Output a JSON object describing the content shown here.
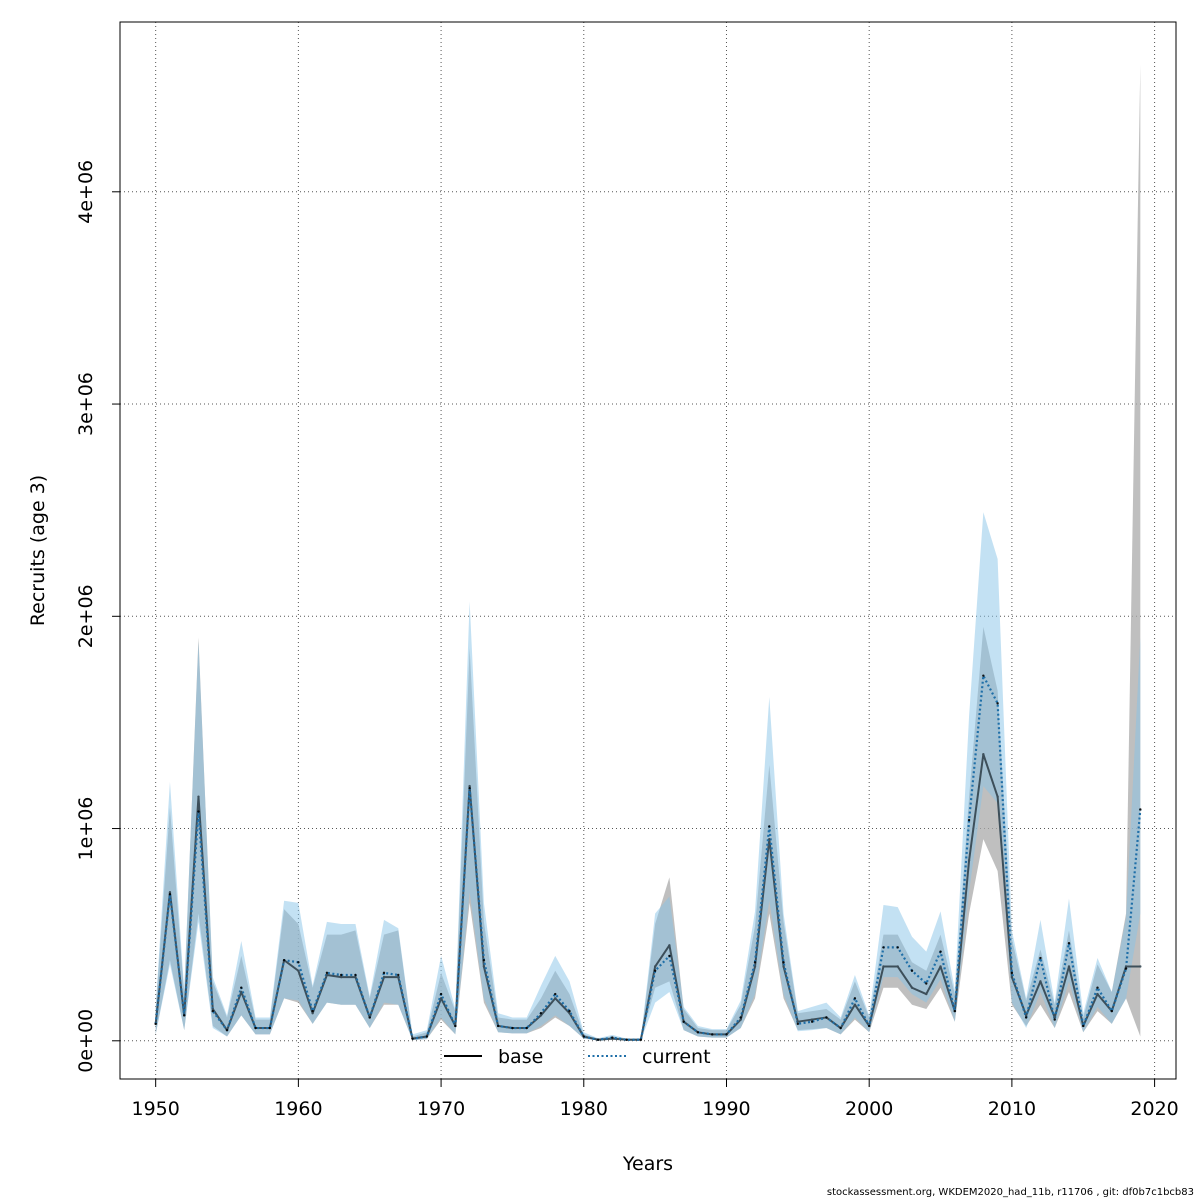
{
  "chart_data": {
    "type": "line",
    "title": "",
    "xlabel": "Years",
    "ylabel": "Recruits (age 3)",
    "xlim": [
      1947.5,
      2021.5
    ],
    "ylim": [
      -180000,
      4800000
    ],
    "x_ticks": [
      1950,
      1960,
      1970,
      1980,
      1990,
      2000,
      2010,
      2020
    ],
    "x_tick_labels": [
      "1950",
      "1960",
      "1970",
      "1980",
      "1990",
      "2000",
      "2010",
      "2020"
    ],
    "y_ticks": [
      0,
      1000000,
      2000000,
      3000000,
      4000000
    ],
    "y_tick_labels": [
      "0e+00",
      "1e+06",
      "2e+06",
      "3e+06",
      "4e+06"
    ],
    "grid": true,
    "legend_position": "bottom",
    "colors": {
      "base": "#000000",
      "base_band": "#a9a9a9",
      "current": "#1f6fa8",
      "current_band": "#87c4e8"
    },
    "x": [
      1950,
      1951,
      1952,
      1953,
      1954,
      1955,
      1956,
      1957,
      1958,
      1959,
      1960,
      1961,
      1962,
      1963,
      1964,
      1965,
      1966,
      1967,
      1968,
      1969,
      1970,
      1971,
      1972,
      1973,
      1974,
      1975,
      1976,
      1977,
      1978,
      1979,
      1980,
      1981,
      1982,
      1983,
      1984,
      1985,
      1986,
      1987,
      1988,
      1989,
      1990,
      1991,
      1992,
      1993,
      1994,
      1995,
      1996,
      1997,
      1998,
      1999,
      2000,
      2001,
      2002,
      2003,
      2004,
      2005,
      2006,
      2007,
      2008,
      2009,
      2010,
      2011,
      2012,
      2013,
      2014,
      2015,
      2016,
      2017,
      2018,
      2019
    ],
    "series": [
      {
        "name": "base",
        "style": "solid",
        "values": [
          80000,
          700000,
          120000,
          1150000,
          150000,
          50000,
          230000,
          60000,
          60000,
          380000,
          330000,
          130000,
          310000,
          300000,
          300000,
          110000,
          300000,
          300000,
          10000,
          20000,
          200000,
          70000,
          1200000,
          350000,
          70000,
          60000,
          60000,
          120000,
          200000,
          130000,
          20000,
          5000,
          10000,
          5000,
          5000,
          350000,
          450000,
          90000,
          40000,
          30000,
          30000,
          100000,
          350000,
          950000,
          350000,
          90000,
          100000,
          110000,
          60000,
          170000,
          70000,
          350000,
          350000,
          250000,
          220000,
          350000,
          140000,
          850000,
          1350000,
          1150000,
          300000,
          120000,
          280000,
          110000,
          350000,
          70000,
          220000,
          140000,
          350000,
          350000
        ],
        "lower": [
          30000,
          380000,
          50000,
          600000,
          70000,
          20000,
          120000,
          30000,
          30000,
          200000,
          180000,
          80000,
          180000,
          170000,
          170000,
          60000,
          170000,
          170000,
          3000,
          8000,
          100000,
          30000,
          650000,
          180000,
          40000,
          35000,
          35000,
          60000,
          110000,
          70000,
          10000,
          2000,
          5000,
          2000,
          2000,
          250000,
          280000,
          50000,
          20000,
          15000,
          15000,
          60000,
          200000,
          600000,
          200000,
          50000,
          55000,
          60000,
          30000,
          100000,
          40000,
          250000,
          250000,
          170000,
          150000,
          250000,
          90000,
          600000,
          950000,
          800000,
          170000,
          70000,
          170000,
          60000,
          230000,
          40000,
          140000,
          80000,
          200000,
          20000
        ],
        "upper": [
          150000,
          1100000,
          220000,
          1900000,
          280000,
          110000,
          400000,
          100000,
          100000,
          620000,
          550000,
          250000,
          500000,
          500000,
          520000,
          200000,
          500000,
          520000,
          20000,
          40000,
          320000,
          140000,
          1850000,
          560000,
          110000,
          100000,
          100000,
          200000,
          330000,
          220000,
          30000,
          10000,
          20000,
          10000,
          10000,
          550000,
          770000,
          150000,
          60000,
          50000,
          50000,
          170000,
          540000,
          1300000,
          560000,
          130000,
          140000,
          150000,
          100000,
          280000,
          110000,
          500000,
          500000,
          370000,
          330000,
          500000,
          220000,
          1150000,
          1950000,
          1650000,
          480000,
          190000,
          430000,
          170000,
          520000,
          110000,
          360000,
          230000,
          600000,
          4600000
        ]
      },
      {
        "name": "current",
        "style": "dotted",
        "values": [
          80000,
          690000,
          120000,
          1080000,
          140000,
          50000,
          250000,
          60000,
          60000,
          380000,
          370000,
          140000,
          320000,
          310000,
          310000,
          110000,
          320000,
          310000,
          10000,
          20000,
          220000,
          70000,
          1190000,
          380000,
          70000,
          60000,
          60000,
          130000,
          220000,
          140000,
          20000,
          5000,
          15000,
          5000,
          5000,
          330000,
          400000,
          90000,
          40000,
          30000,
          30000,
          110000,
          370000,
          1010000,
          370000,
          80000,
          90000,
          110000,
          60000,
          200000,
          70000,
          440000,
          440000,
          330000,
          270000,
          420000,
          140000,
          1040000,
          1720000,
          1590000,
          320000,
          110000,
          390000,
          100000,
          460000,
          70000,
          250000,
          140000,
          340000,
          1090000
        ],
        "lower": [
          30000,
          360000,
          50000,
          560000,
          60000,
          20000,
          120000,
          30000,
          30000,
          200000,
          190000,
          80000,
          180000,
          170000,
          170000,
          60000,
          180000,
          170000,
          3000,
          8000,
          110000,
          30000,
          700000,
          200000,
          40000,
          35000,
          35000,
          70000,
          120000,
          70000,
          10000,
          2000,
          7000,
          2000,
          2000,
          180000,
          230000,
          50000,
          20000,
          15000,
          15000,
          60000,
          220000,
          660000,
          220000,
          45000,
          50000,
          60000,
          30000,
          110000,
          40000,
          300000,
          300000,
          220000,
          180000,
          290000,
          90000,
          700000,
          1200000,
          1120000,
          180000,
          60000,
          230000,
          60000,
          280000,
          40000,
          160000,
          80000,
          200000,
          600000
        ],
        "upper": [
          160000,
          1220000,
          240000,
          1880000,
          300000,
          120000,
          470000,
          110000,
          110000,
          660000,
          650000,
          260000,
          560000,
          550000,
          550000,
          210000,
          570000,
          530000,
          30000,
          50000,
          400000,
          150000,
          2070000,
          650000,
          130000,
          110000,
          110000,
          260000,
          400000,
          280000,
          40000,
          12000,
          28000,
          10000,
          12000,
          600000,
          680000,
          160000,
          70000,
          55000,
          55000,
          190000,
          610000,
          1620000,
          600000,
          140000,
          160000,
          180000,
          110000,
          310000,
          120000,
          640000,
          630000,
          490000,
          420000,
          610000,
          240000,
          1530000,
          2490000,
          2270000,
          520000,
          200000,
          570000,
          180000,
          670000,
          130000,
          390000,
          230000,
          580000,
          1900000
        ]
      }
    ]
  },
  "footer": "stockassessment.org, WKDEM2020_had_11b, r11706 , git: df0b7c1bcb83"
}
